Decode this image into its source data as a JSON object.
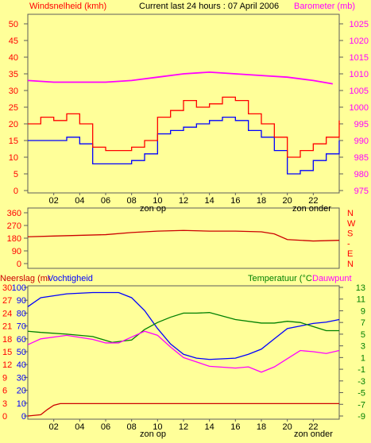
{
  "colors": {
    "background": "#ffff99",
    "border": "#5c5c5c",
    "wind": "#ff0000",
    "wind_gust_low": "#0000ff",
    "barometer": "#ff00ff",
    "direction": "#cc0000",
    "humidity": "#0000ff",
    "temperature": "#008000",
    "dewpoint": "#ff00ff",
    "rain": "#cc0000",
    "grid": "#cccccc",
    "text_red": "#ff0000",
    "text_magenta": "#ff00ff",
    "text_green": "#008000",
    "text_blue": "#0000ff",
    "text_black": "#000000"
  },
  "header": {
    "wind_label": "Windsnelheid (kmh)",
    "title": "Current last 24 hours : 07 April 2006",
    "barometer_label": "Barometer (mb)"
  },
  "middle": {
    "direction_letters": [
      "N",
      "W",
      "S",
      "-",
      "E",
      "N"
    ]
  },
  "bottom": {
    "rain_label": "Neerslag (mr",
    "humidity_label": "Vochtigheid",
    "temperature_label": "Temperatuur (°C",
    "dewpoint_label": "Dauwpunt"
  },
  "annotations": {
    "sunrise": "zon op",
    "sunset": "zon onder"
  },
  "chart_data": [
    {
      "type": "line",
      "x_ticks": [
        "02",
        "04",
        "06",
        "08",
        "10",
        "12",
        "14",
        "16",
        "18",
        "20",
        "22"
      ],
      "xlim": [
        0,
        24
      ],
      "left_ticks": [
        "0",
        "5",
        "10",
        "15",
        "20",
        "25",
        "30",
        "35",
        "40",
        "45",
        "50"
      ],
      "right_ticks": [
        "975",
        "980",
        "985",
        "990",
        "995",
        "1000",
        "1005",
        "1010",
        "1015",
        "1020",
        "1025"
      ],
      "ylim_left": [
        0,
        50
      ],
      "ylim_right": [
        975,
        1025
      ],
      "series": [
        {
          "x": [
            0,
            1,
            2,
            3,
            4,
            5,
            6,
            7,
            8,
            9,
            10,
            11,
            12,
            13,
            14,
            15,
            16,
            17,
            18,
            19,
            20,
            21,
            22,
            23,
            24
          ],
          "values": [
            20,
            22,
            21,
            23,
            20,
            13,
            12,
            12,
            13,
            15,
            22,
            24,
            27,
            25,
            26,
            28,
            27,
            23,
            20,
            16,
            10,
            12,
            14,
            16,
            21
          ]
        },
        {
          "x": [
            0,
            1,
            2,
            3,
            4,
            5,
            6,
            7,
            8,
            9,
            10,
            11,
            12,
            13,
            14,
            15,
            16,
            17,
            18,
            19,
            20,
            21,
            22,
            23,
            24
          ],
          "values": [
            15,
            15,
            15,
            16,
            14,
            8,
            8,
            8,
            9,
            11,
            17,
            18,
            19,
            20,
            21,
            22,
            21,
            18,
            16,
            12,
            5,
            6,
            9,
            11,
            15
          ]
        },
        {
          "x": [
            0,
            2,
            4,
            6,
            8,
            10,
            12,
            14,
            16,
            18,
            20,
            22,
            23.5
          ],
          "values": [
            1008,
            1007.5,
            1007.5,
            1007.5,
            1008,
            1009,
            1010,
            1010.5,
            1010,
            1009.5,
            1009,
            1008,
            1007
          ]
        }
      ]
    },
    {
      "type": "line",
      "x_ticks": [],
      "xlim": [
        0,
        24
      ],
      "left_ticks": [
        "360",
        "270",
        "180",
        "90",
        "0"
      ],
      "ylim": [
        0,
        360
      ],
      "series": [
        {
          "x": [
            0,
            2,
            4,
            6,
            8,
            10,
            12,
            14,
            16,
            18,
            19,
            20,
            22,
            24
          ],
          "values": [
            190,
            195,
            200,
            205,
            220,
            230,
            235,
            230,
            230,
            225,
            210,
            170,
            160,
            165
          ]
        }
      ]
    },
    {
      "type": "line",
      "x_ticks": [
        "02",
        "04",
        "06",
        "08",
        "10",
        "12",
        "14",
        "16",
        "18",
        "20",
        "22"
      ],
      "xlim": [
        0,
        24
      ],
      "rain_ticks": [
        "0",
        "3",
        "6",
        "9",
        "12",
        "15",
        "18",
        "21",
        "24",
        "27",
        "30"
      ],
      "humidity_ticks": [
        "0",
        "10",
        "20",
        "30",
        "40",
        "50",
        "60",
        "70",
        "80",
        "90",
        "100"
      ],
      "temperature_ticks": [
        "-9",
        "-7",
        "-5",
        "-3",
        "-1",
        "1",
        "3",
        "5",
        "7",
        "9",
        "11",
        "13"
      ],
      "ylim_humidity": [
        0,
        100
      ],
      "ylim_temperature": [
        -9,
        13
      ],
      "series": [
        {
          "x": [
            0,
            1,
            3,
            5,
            7,
            8,
            9,
            10,
            11,
            12,
            13,
            14,
            16,
            17,
            18,
            19,
            20,
            21,
            22,
            23,
            24
          ],
          "values": [
            85,
            92,
            95,
            96,
            96,
            92,
            82,
            68,
            56,
            48,
            45,
            44,
            45,
            48,
            52,
            60,
            68,
            70,
            72,
            73,
            75
          ]
        },
        {
          "x": [
            0,
            1,
            3,
            5,
            6.5,
            8,
            9,
            10,
            11,
            12,
            13,
            14,
            16,
            18,
            19,
            20,
            21,
            22,
            23,
            24
          ],
          "values": [
            5.5,
            5.3,
            5,
            4.6,
            3.6,
            4,
            5.8,
            7,
            7.9,
            8.6,
            8.6,
            8.7,
            7.5,
            6.9,
            6.9,
            7.2,
            7,
            6.3,
            5.6,
            5.6
          ]
        },
        {
          "x": [
            0,
            1,
            3,
            5,
            6,
            7,
            8,
            9,
            10,
            11,
            12,
            14,
            16,
            17,
            18,
            19,
            20,
            21,
            22,
            23,
            24
          ],
          "values": [
            3.2,
            4.2,
            4.8,
            4.1,
            3.5,
            3.5,
            4.5,
            5.5,
            4.8,
            2.8,
            1.0,
            -0.5,
            -0.8,
            -0.6,
            -1.5,
            -0.6,
            0.8,
            2.2,
            2.0,
            1.7,
            2.2
          ]
        },
        {
          "x": [
            0,
            1,
            1.5,
            2,
            2.5,
            24
          ],
          "values": [
            0,
            0.3,
            1.5,
            2.5,
            2.9,
            2.9
          ]
        }
      ]
    }
  ]
}
